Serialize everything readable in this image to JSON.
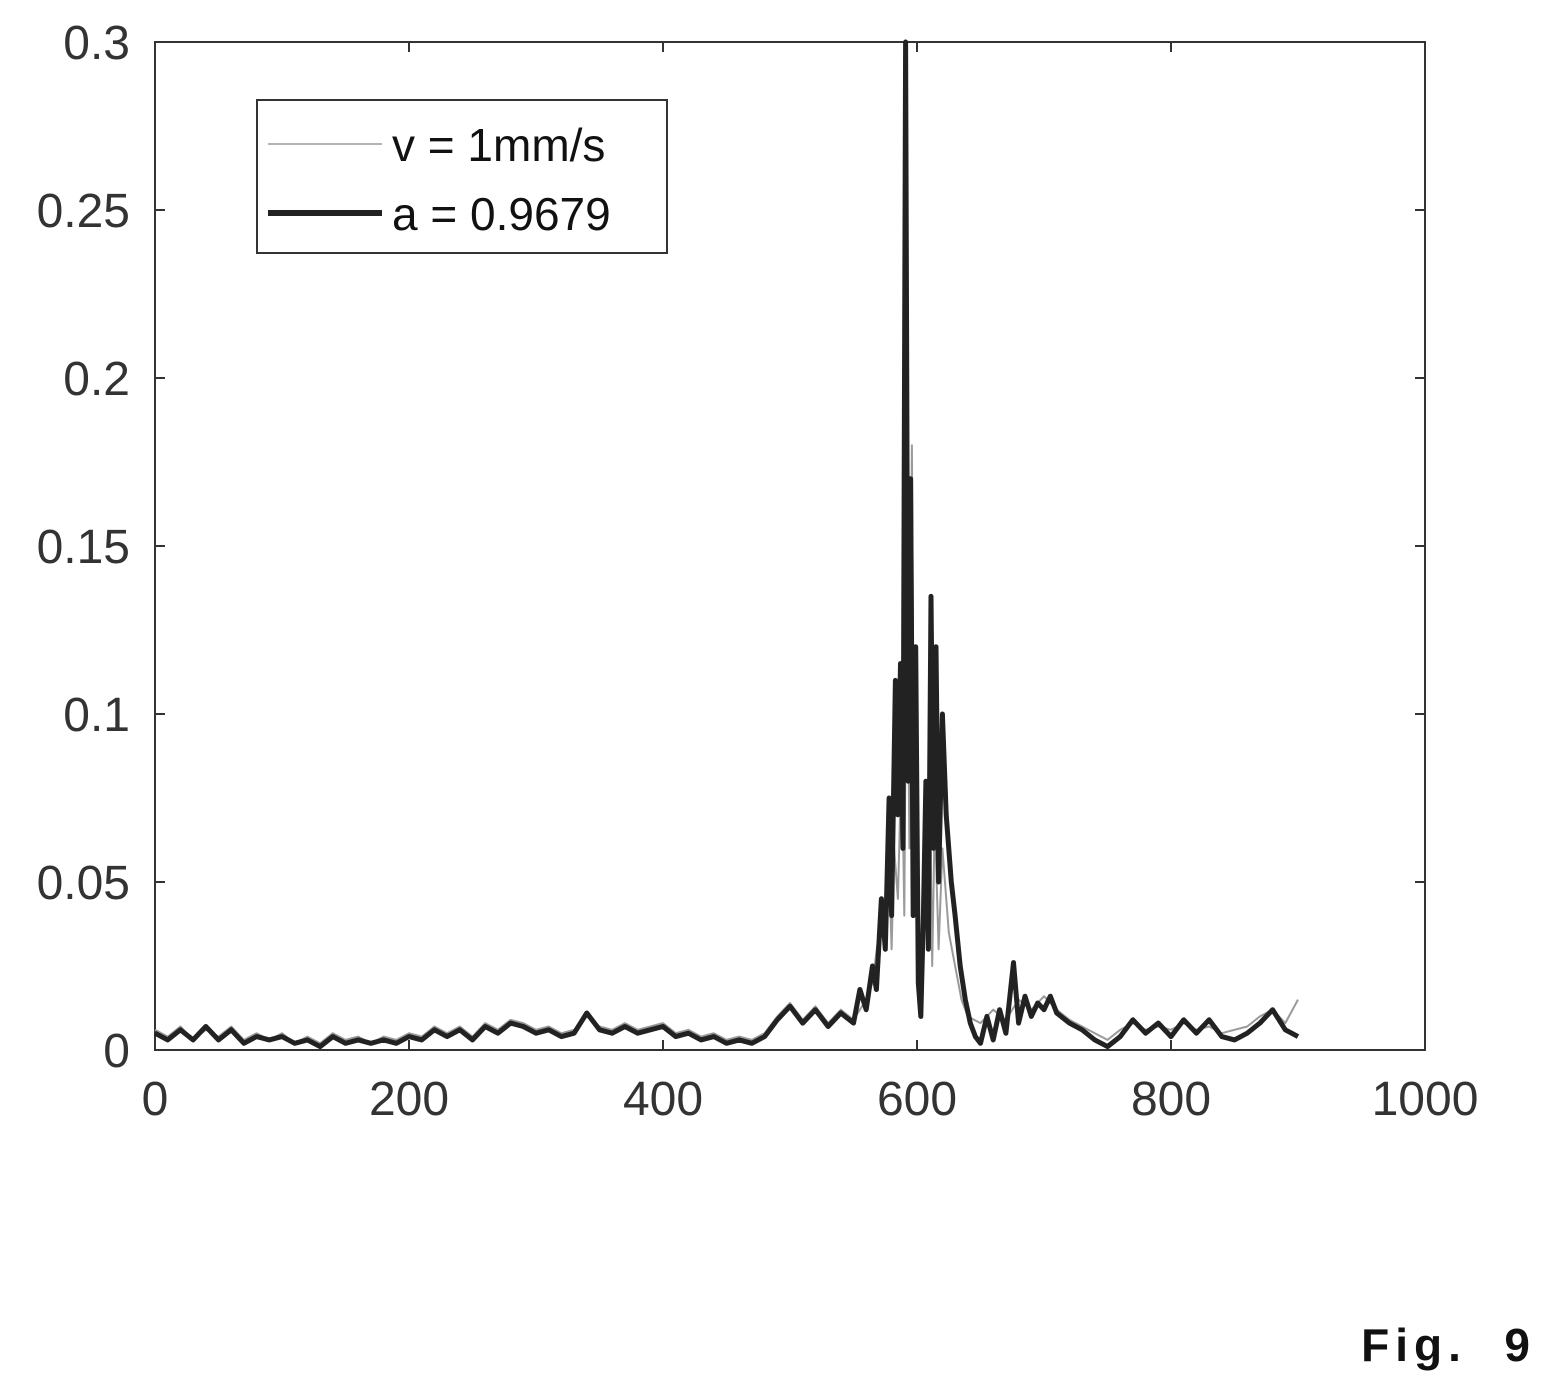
{
  "figure_label": "Fig.  9",
  "chart_data": {
    "type": "line",
    "title": "",
    "xlabel": "",
    "ylabel": "",
    "xlim": [
      0,
      1000
    ],
    "ylim": [
      0,
      0.3
    ],
    "xticks": [
      "0",
      "200",
      "400",
      "600",
      "800",
      "1000"
    ],
    "yticks": [
      "0",
      "0.05",
      "0.1",
      "0.15",
      "0.2",
      "0.25",
      "0.3"
    ],
    "grid": false,
    "legend_position": "top-left",
    "series": [
      {
        "name": "v = 1mm/s",
        "color": "#9a9a9a",
        "style": "thin",
        "points": [
          [
            0,
            0.006
          ],
          [
            10,
            0.004
          ],
          [
            20,
            0.007
          ],
          [
            30,
            0.003
          ],
          [
            40,
            0.006
          ],
          [
            50,
            0.004
          ],
          [
            60,
            0.007
          ],
          [
            70,
            0.003
          ],
          [
            80,
            0.005
          ],
          [
            90,
            0.003
          ],
          [
            100,
            0.005
          ],
          [
            110,
            0.002
          ],
          [
            120,
            0.004
          ],
          [
            130,
            0.002
          ],
          [
            140,
            0.005
          ],
          [
            150,
            0.003
          ],
          [
            160,
            0.004
          ],
          [
            170,
            0.002
          ],
          [
            180,
            0.004
          ],
          [
            190,
            0.003
          ],
          [
            200,
            0.005
          ],
          [
            210,
            0.004
          ],
          [
            220,
            0.007
          ],
          [
            230,
            0.005
          ],
          [
            240,
            0.007
          ],
          [
            250,
            0.004
          ],
          [
            260,
            0.008
          ],
          [
            270,
            0.006
          ],
          [
            280,
            0.009
          ],
          [
            290,
            0.008
          ],
          [
            300,
            0.006
          ],
          [
            310,
            0.007
          ],
          [
            320,
            0.005
          ],
          [
            330,
            0.006
          ],
          [
            340,
            0.01
          ],
          [
            350,
            0.007
          ],
          [
            360,
            0.006
          ],
          [
            370,
            0.008
          ],
          [
            380,
            0.006
          ],
          [
            390,
            0.007
          ],
          [
            400,
            0.008
          ],
          [
            410,
            0.005
          ],
          [
            420,
            0.006
          ],
          [
            430,
            0.004
          ],
          [
            440,
            0.005
          ],
          [
            450,
            0.003
          ],
          [
            460,
            0.004
          ],
          [
            470,
            0.003
          ],
          [
            480,
            0.005
          ],
          [
            490,
            0.01
          ],
          [
            500,
            0.014
          ],
          [
            510,
            0.009
          ],
          [
            520,
            0.013
          ],
          [
            530,
            0.008
          ],
          [
            540,
            0.012
          ],
          [
            550,
            0.009
          ],
          [
            560,
            0.015
          ],
          [
            565,
            0.02
          ],
          [
            570,
            0.035
          ],
          [
            575,
            0.04
          ],
          [
            578,
            0.055
          ],
          [
            580,
            0.03
          ],
          [
            582,
            0.06
          ],
          [
            585,
            0.045
          ],
          [
            588,
            0.09
          ],
          [
            590,
            0.04
          ],
          [
            592,
            0.15
          ],
          [
            594,
            0.06
          ],
          [
            596,
            0.18
          ],
          [
            598,
            0.04
          ],
          [
            600,
            0.1
          ],
          [
            602,
            0.02
          ],
          [
            604,
            0.01
          ],
          [
            606,
            0.06
          ],
          [
            608,
            0.03
          ],
          [
            610,
            0.08
          ],
          [
            612,
            0.025
          ],
          [
            614,
            0.07
          ],
          [
            617,
            0.03
          ],
          [
            620,
            0.06
          ],
          [
            625,
            0.035
          ],
          [
            630,
            0.025
          ],
          [
            635,
            0.015
          ],
          [
            640,
            0.01
          ],
          [
            650,
            0.008
          ],
          [
            660,
            0.012
          ],
          [
            670,
            0.009
          ],
          [
            680,
            0.015
          ],
          [
            690,
            0.012
          ],
          [
            700,
            0.016
          ],
          [
            710,
            0.012
          ],
          [
            720,
            0.009
          ],
          [
            730,
            0.007
          ],
          [
            740,
            0.005
          ],
          [
            750,
            0.003
          ],
          [
            760,
            0.006
          ],
          [
            770,
            0.008
          ],
          [
            780,
            0.006
          ],
          [
            790,
            0.007
          ],
          [
            800,
            0.006
          ],
          [
            810,
            0.008
          ],
          [
            820,
            0.006
          ],
          [
            830,
            0.007
          ],
          [
            840,
            0.005
          ],
          [
            850,
            0.006
          ],
          [
            860,
            0.007
          ],
          [
            870,
            0.01
          ],
          [
            880,
            0.012
          ],
          [
            890,
            0.008
          ],
          [
            900,
            0.015
          ]
        ]
      },
      {
        "name": "a = 0.9679",
        "color": "#222222",
        "style": "thick",
        "points": [
          [
            0,
            0.005
          ],
          [
            10,
            0.003
          ],
          [
            20,
            0.006
          ],
          [
            30,
            0.003
          ],
          [
            40,
            0.007
          ],
          [
            50,
            0.003
          ],
          [
            60,
            0.006
          ],
          [
            70,
            0.002
          ],
          [
            80,
            0.004
          ],
          [
            90,
            0.003
          ],
          [
            100,
            0.004
          ],
          [
            110,
            0.002
          ],
          [
            120,
            0.003
          ],
          [
            130,
            0.001
          ],
          [
            140,
            0.004
          ],
          [
            150,
            0.002
          ],
          [
            160,
            0.003
          ],
          [
            170,
            0.002
          ],
          [
            180,
            0.003
          ],
          [
            190,
            0.002
          ],
          [
            200,
            0.004
          ],
          [
            210,
            0.003
          ],
          [
            220,
            0.006
          ],
          [
            230,
            0.004
          ],
          [
            240,
            0.006
          ],
          [
            250,
            0.003
          ],
          [
            260,
            0.007
          ],
          [
            270,
            0.005
          ],
          [
            280,
            0.008
          ],
          [
            290,
            0.007
          ],
          [
            300,
            0.005
          ],
          [
            310,
            0.006
          ],
          [
            320,
            0.004
          ],
          [
            330,
            0.005
          ],
          [
            340,
            0.011
          ],
          [
            350,
            0.006
          ],
          [
            360,
            0.005
          ],
          [
            370,
            0.007
          ],
          [
            380,
            0.005
          ],
          [
            390,
            0.006
          ],
          [
            400,
            0.007
          ],
          [
            410,
            0.004
          ],
          [
            420,
            0.005
          ],
          [
            430,
            0.003
          ],
          [
            440,
            0.004
          ],
          [
            450,
            0.002
          ],
          [
            460,
            0.003
          ],
          [
            470,
            0.002
          ],
          [
            480,
            0.004
          ],
          [
            490,
            0.009
          ],
          [
            500,
            0.013
          ],
          [
            510,
            0.008
          ],
          [
            520,
            0.012
          ],
          [
            530,
            0.007
          ],
          [
            540,
            0.011
          ],
          [
            550,
            0.008
          ],
          [
            555,
            0.018
          ],
          [
            560,
            0.012
          ],
          [
            565,
            0.025
          ],
          [
            568,
            0.018
          ],
          [
            572,
            0.045
          ],
          [
            575,
            0.03
          ],
          [
            578,
            0.075
          ],
          [
            580,
            0.04
          ],
          [
            583,
            0.11
          ],
          [
            585,
            0.07
          ],
          [
            587,
            0.115
          ],
          [
            589,
            0.06
          ],
          [
            591,
            0.3
          ],
          [
            593,
            0.08
          ],
          [
            595,
            0.17
          ],
          [
            597,
            0.04
          ],
          [
            599,
            0.12
          ],
          [
            601,
            0.02
          ],
          [
            603,
            0.01
          ],
          [
            605,
            0.04
          ],
          [
            607,
            0.08
          ],
          [
            609,
            0.03
          ],
          [
            611,
            0.135
          ],
          [
            613,
            0.06
          ],
          [
            615,
            0.12
          ],
          [
            617,
            0.05
          ],
          [
            620,
            0.1
          ],
          [
            623,
            0.07
          ],
          [
            627,
            0.05
          ],
          [
            630,
            0.04
          ],
          [
            634,
            0.025
          ],
          [
            638,
            0.015
          ],
          [
            642,
            0.008
          ],
          [
            646,
            0.004
          ],
          [
            650,
            0.002
          ],
          [
            655,
            0.01
          ],
          [
            660,
            0.003
          ],
          [
            665,
            0.012
          ],
          [
            670,
            0.005
          ],
          [
            676,
            0.026
          ],
          [
            680,
            0.008
          ],
          [
            685,
            0.016
          ],
          [
            690,
            0.01
          ],
          [
            695,
            0.014
          ],
          [
            700,
            0.012
          ],
          [
            705,
            0.016
          ],
          [
            710,
            0.011
          ],
          [
            720,
            0.008
          ],
          [
            730,
            0.006
          ],
          [
            740,
            0.003
          ],
          [
            750,
            0.001
          ],
          [
            760,
            0.004
          ],
          [
            770,
            0.009
          ],
          [
            780,
            0.005
          ],
          [
            790,
            0.008
          ],
          [
            800,
            0.004
          ],
          [
            810,
            0.009
          ],
          [
            820,
            0.005
          ],
          [
            830,
            0.009
          ],
          [
            840,
            0.004
          ],
          [
            850,
            0.003
          ],
          [
            860,
            0.005
          ],
          [
            870,
            0.008
          ],
          [
            880,
            0.012
          ],
          [
            890,
            0.006
          ],
          [
            900,
            0.004
          ]
        ]
      }
    ]
  }
}
